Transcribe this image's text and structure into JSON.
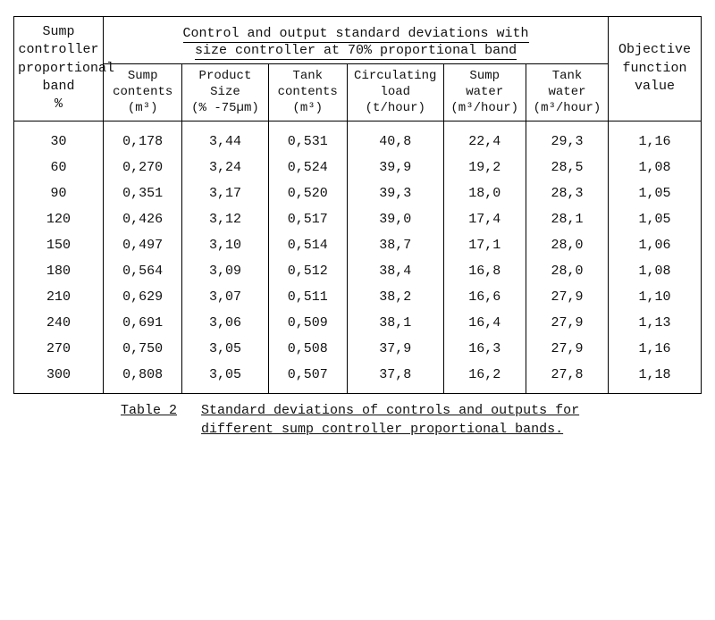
{
  "header": {
    "leftcol": "Sump<br>controller<br>proportional<br>band<br>%",
    "group_title_l1": "Control and output standard deviations with",
    "group_title_l2": "size controller at 70% proportional band",
    "rightcol": "Objective<br>function<br>value",
    "sub": [
      "Sump<br>contents<br>(m³)",
      "Product<br>Size<br>(% -75µm)",
      "Tank<br>contents<br>(m³)",
      "Circulating<br>load<br>(t/hour)",
      "Sump<br>water<br>(m³/hour)",
      "Tank<br>water<br>(m³/hour)"
    ]
  },
  "rows": [
    [
      "30",
      "0,178",
      "3,44",
      "0,531",
      "40,8",
      "22,4",
      "29,3",
      "1,16"
    ],
    [
      "60",
      "0,270",
      "3,24",
      "0,524",
      "39,9",
      "19,2",
      "28,5",
      "1,08"
    ],
    [
      "90",
      "0,351",
      "3,17",
      "0,520",
      "39,3",
      "18,0",
      "28,3",
      "1,05"
    ],
    [
      "120",
      "0,426",
      "3,12",
      "0,517",
      "39,0",
      "17,4",
      "28,1",
      "1,05"
    ],
    [
      "150",
      "0,497",
      "3,10",
      "0,514",
      "38,7",
      "17,1",
      "28,0",
      "1,06"
    ],
    [
      "180",
      "0,564",
      "3,09",
      "0,512",
      "38,4",
      "16,8",
      "28,0",
      "1,08"
    ],
    [
      "210",
      "0,629",
      "3,07",
      "0,511",
      "38,2",
      "16,6",
      "27,9",
      "1,10"
    ],
    [
      "240",
      "0,691",
      "3,06",
      "0,509",
      "38,1",
      "16,4",
      "27,9",
      "1,13"
    ],
    [
      "270",
      "0,750",
      "3,05",
      "0,508",
      "37,9",
      "16,3",
      "27,9",
      "1,16"
    ],
    [
      "300",
      "0,808",
      "3,05",
      "0,507",
      "37,8",
      "16,2",
      "27,8",
      "1,18"
    ]
  ],
  "caption": {
    "label": "Table 2",
    "line1": "Standard deviations of controls and outputs for",
    "line2": "different sump controller proportional bands."
  }
}
